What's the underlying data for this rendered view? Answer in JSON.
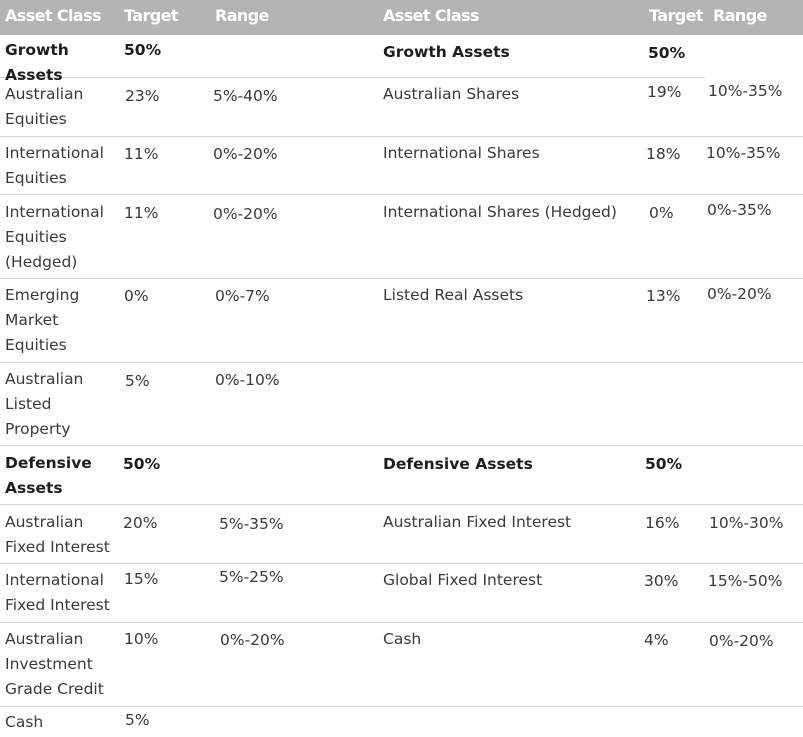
{
  "header": {
    "left": {
      "asset_class": "Asset Class",
      "target": "Target",
      "range": "Range"
    },
    "right": {
      "asset_class": "Asset Class",
      "target": "Target",
      "range": "Range"
    }
  },
  "left_table": {
    "rows": [
      {
        "asset": "Growth Assets",
        "target": "50%",
        "range": ""
      },
      {
        "asset": "Australian Equities",
        "target": "23%",
        "range": "5%-40%"
      },
      {
        "asset": "International Equities",
        "target": "11%",
        "range": "0%-20%"
      },
      {
        "asset": "International Equities (Hedged)",
        "target": "11%",
        "range": "0%-20%"
      },
      {
        "asset": "Emerging Market Equities",
        "target": "0%",
        "range": "0%-7%"
      },
      {
        "asset": "Australian Listed Property",
        "target": "5%",
        "range": "0%-10%"
      },
      {
        "asset": "Defensive Assets",
        "target": "50%",
        "range": ""
      },
      {
        "asset": "Australian Fixed Interest",
        "target": "20%",
        "range": "5%-35%"
      },
      {
        "asset": "International Fixed Interest",
        "target": "15%",
        "range": "5%-25%"
      },
      {
        "asset": "Australian Investment Grade Credit",
        "target": "10%",
        "range": "0%-20%"
      },
      {
        "asset": "Cash",
        "target": "5%",
        "range": ""
      }
    ]
  },
  "right_table": {
    "rows": [
      {
        "asset": "Growth Assets",
        "target": "50%",
        "range": ""
      },
      {
        "asset": "Australian Shares",
        "target": "19%",
        "range": "10%-35%"
      },
      {
        "asset": "International Shares",
        "target": "18%",
        "range": "10%-35%"
      },
      {
        "asset": "International Shares (Hedged)",
        "target": "0%",
        "range": "0%-35%"
      },
      {
        "asset": "Listed Real Assets",
        "target": "13%",
        "range": "0%-20%"
      },
      {
        "asset": "Defensive Assets",
        "target": "50%",
        "range": ""
      },
      {
        "asset": "Australian Fixed Interest",
        "target": "16%",
        "range": "10%-30%"
      },
      {
        "asset": "Global Fixed Interest",
        "target": "30%",
        "range": "15%-50%"
      },
      {
        "asset": "Cash",
        "target": "4%",
        "range": "0%-20%"
      }
    ]
  }
}
